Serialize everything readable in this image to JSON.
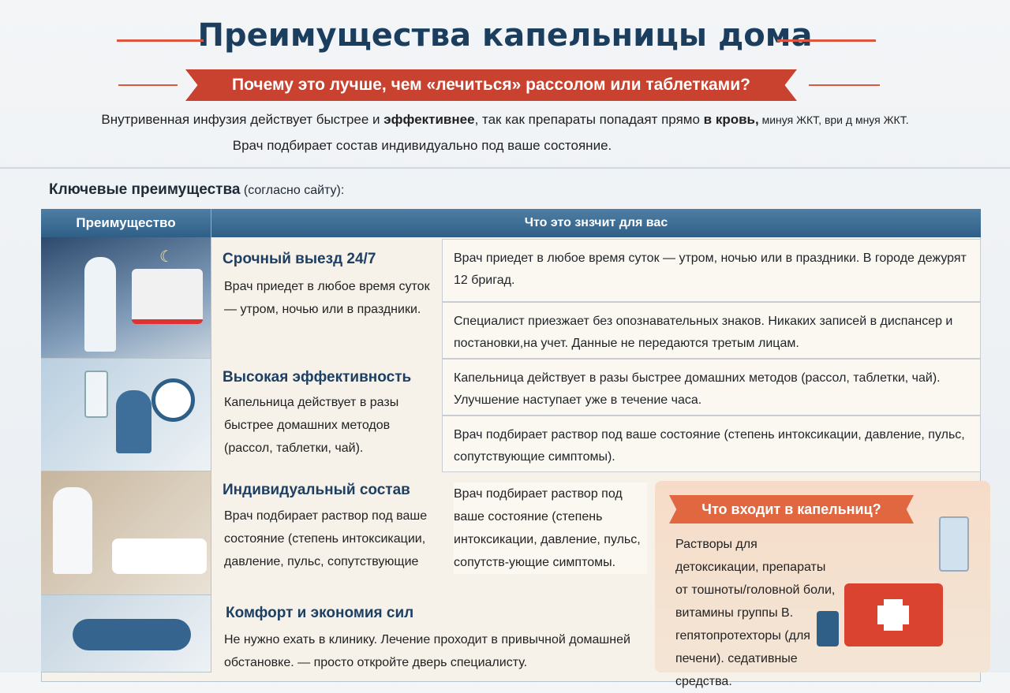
{
  "title": "Преимущества капельницы дома",
  "subtitle": "Почему это лучше, чем «лечиться» рассолом или таблетками?",
  "intro": {
    "p1_a": "Внутривенная инфузия действует быстрее и ",
    "p1_b": "эффективнее",
    "p1_c": ", так как препараты попадаят прямо ",
    "p1_d": "в кровь,",
    "p1_e": " минуя ЖКТ, ври д мнуя ЖКТ.",
    "p2": "Врач подбирает состав индивидуально под ваше состояние."
  },
  "section": {
    "title": "Ключевые преимущества",
    "note": " (согласно сайту):"
  },
  "table": {
    "headers": [
      "Преимущество",
      "Что это знзчит для вас"
    ],
    "rows": [
      {
        "title": "Срочный выезд 24/7",
        "text": "Врач приедет в любое время суток — утром, ночью или в праздники.",
        "cells": [
          "Врач приедет в любое время суток — утром, ночью или в праздники. В городе дежурят 12 бригад.",
          "Специалист приезжает без опознавательных знаков. Никаких записей в диспансер и постановки,на учет. Данные не передаются третым лицам."
        ]
      },
      {
        "title": "Высокая эффективность",
        "text": "Капельница действует в разы быстрее домашних методов (рассол, таблетки, чай).",
        "cells": [
          "Капельница действует в разы быстрее домашних методов (рассол, таблетки, чай). Улучшение наступает уже в течение часа.",
          "Врач подбирает раствор под ваше состояние (степень интоксикации, давление, пульс, сопутствующие симптомы)."
        ]
      },
      {
        "title": "Индивидуальный состав",
        "text": "Врач подбирает раствор под ваше состояние (степень интоксикации, давление, пульс, сопутствующие",
        "cells": [
          "Врач подбирает раствор под ваше состояние (степень интоксикации, давление, пульс, сопутств-ующие симптомы."
        ]
      },
      {
        "title": "Комфорт и экономия сил",
        "text": "Не нужно ехать в клинику. Лечение проходит в привычной домашней обстановке. — просто откройте дверь специалисту.",
        "cells": []
      }
    ]
  },
  "box": {
    "title": "Что входит в капельниц?",
    "text": "Растворы для детоксикации, препараты от тошноты/головной боли, витамины группы B. гепятопротехторы (для печени). седативные средства."
  },
  "colors": {
    "navy": "#1c3e5e",
    "red": "#c9412f",
    "header_blue": "#3f6e95",
    "orange": "#e0673f"
  }
}
